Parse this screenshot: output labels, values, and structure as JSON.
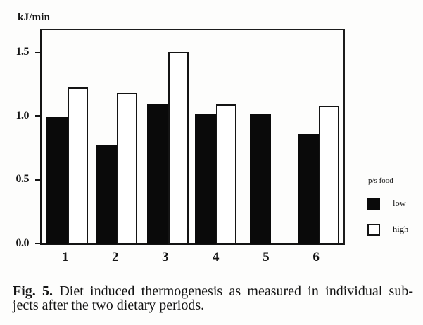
{
  "figure": {
    "y_axis_title": "kJ/min",
    "caption": {
      "label_bold": "Fig. 5.",
      "line1_rest": " Diet induced thermogenesis as measured in individual sub-",
      "line2": "jects after the two dietary periods."
    }
  },
  "chart_data": {
    "type": "bar",
    "title": "",
    "xlabel": "",
    "ylabel": "kJ/min",
    "categories": [
      "1",
      "2",
      "3",
      "4",
      "5",
      "6"
    ],
    "series": [
      {
        "name": "low",
        "style": "filled",
        "color": "#0a0a0a",
        "values": [
          1.0,
          0.78,
          1.1,
          1.02,
          1.02,
          0.86
        ]
      },
      {
        "name": "high",
        "style": "outlined",
        "color": "#ffffff",
        "values": [
          1.23,
          1.19,
          1.51,
          1.1,
          null,
          1.09
        ]
      }
    ],
    "y_ticks": [
      "0.0",
      "0.5",
      "1.0",
      "1.5"
    ],
    "ylim": [
      0,
      1.68
    ],
    "grid": false,
    "legend_position": "right-outside",
    "legend_title": "p/s food",
    "legend_items": [
      {
        "label": "low",
        "style": "filled"
      },
      {
        "label": "high",
        "style": "outlined"
      }
    ]
  },
  "colors": {
    "paper": "#fdfdfc",
    "ink": "#141414",
    "bar_fill": "#0a0a0a",
    "bar_outline_fill": "#ffffff"
  }
}
